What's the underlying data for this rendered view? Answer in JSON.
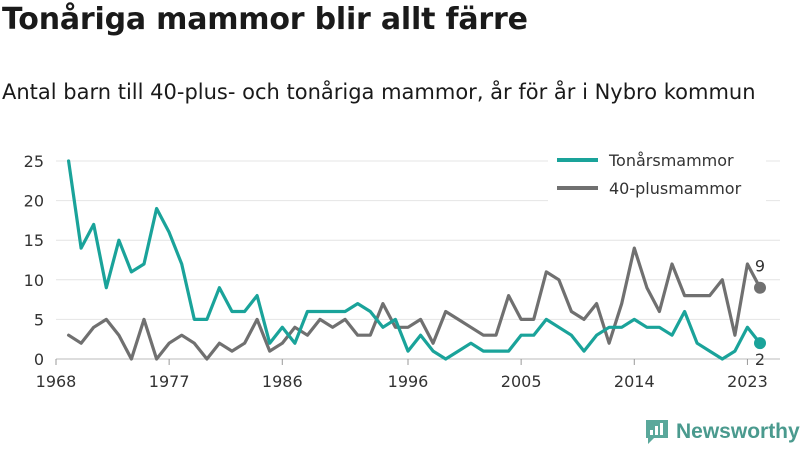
{
  "chart_data": {
    "type": "line",
    "title": "Tonåriga mammor blir allt färre",
    "subtitle": "Antal barn till 40-plus- och tonåriga mammor, år för år i Nybro kommun",
    "x": [
      1969,
      1970,
      1971,
      1972,
      1973,
      1974,
      1975,
      1976,
      1977,
      1978,
      1979,
      1980,
      1981,
      1982,
      1983,
      1984,
      1985,
      1986,
      1987,
      1988,
      1989,
      1990,
      1991,
      1992,
      1993,
      1994,
      1995,
      1996,
      1997,
      1998,
      1999,
      2000,
      2001,
      2002,
      2003,
      2004,
      2005,
      2006,
      2007,
      2008,
      2009,
      2010,
      2011,
      2012,
      2013,
      2014,
      2015,
      2016,
      2017,
      2018,
      2019,
      2020,
      2021,
      2022,
      2023,
      2024
    ],
    "series": [
      {
        "name": "Tonårsmammor",
        "color": "#1aa39a",
        "values": [
          25,
          14,
          17,
          9,
          15,
          11,
          12,
          19,
          16,
          12,
          5,
          5,
          9,
          6,
          6,
          8,
          2,
          4,
          2,
          6,
          6,
          6,
          6,
          7,
          6,
          4,
          5,
          1,
          3,
          1,
          0,
          1,
          2,
          1,
          1,
          1,
          3,
          3,
          5,
          4,
          3,
          1,
          3,
          4,
          4,
          5,
          4,
          4,
          3,
          6,
          2,
          1,
          0,
          1,
          4,
          2
        ]
      },
      {
        "name": "40-plusmammor",
        "color": "#707070",
        "values": [
          3,
          2,
          4,
          5,
          3,
          0,
          5,
          0,
          2,
          3,
          2,
          0,
          2,
          1,
          2,
          5,
          1,
          2,
          4,
          3,
          5,
          4,
          5,
          3,
          3,
          7,
          4,
          4,
          5,
          2,
          6,
          5,
          4,
          3,
          3,
          8,
          5,
          5,
          11,
          10,
          6,
          5,
          7,
          2,
          7,
          14,
          9,
          6,
          12,
          8,
          8,
          8,
          10,
          3,
          12,
          9
        ]
      }
    ],
    "x_ticks": [
      "1968",
      "1977",
      "1986",
      "1996",
      "2005",
      "2014",
      "2023"
    ],
    "y_ticks": [
      "0",
      "5",
      "10",
      "15",
      "20",
      "25"
    ],
    "xlim": [
      1968,
      2024
    ],
    "ylim": [
      0,
      25
    ],
    "xlabel": "",
    "ylabel": "",
    "grid": "horizontal",
    "legend_position": "top-right",
    "end_labels": [
      {
        "series": "40-plusmammor",
        "text": "9"
      },
      {
        "series": "Tonårsmammor",
        "text": "2"
      }
    ]
  },
  "brand": {
    "name": "Newsworthy",
    "color": "#4a9a8e"
  }
}
